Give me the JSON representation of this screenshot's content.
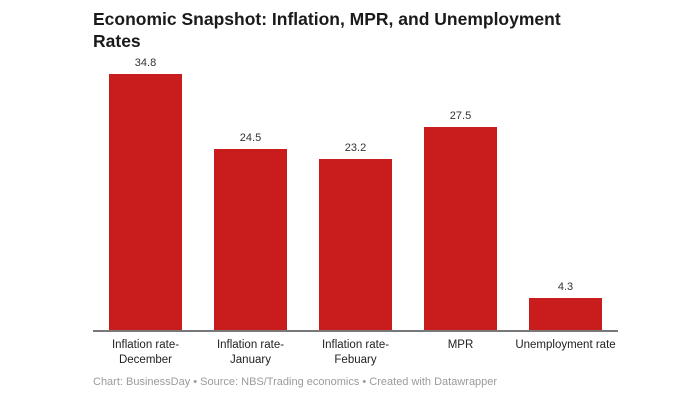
{
  "title": "Economic Snapshot: Inflation, MPR, and Unemployment Rates",
  "footer": {
    "text": "Chart: BusinessDay • Source: NBS/Trading economics • Created with Datawrapper"
  },
  "colors": {
    "bar": "#c91d1d",
    "axis": "#787878",
    "title": "#1a1a1a",
    "value_label": "#333333",
    "category_label": "#222222",
    "footer": "#9b9b9b",
    "background": "#ffffff"
  },
  "chart_data": {
    "type": "bar",
    "title": "Economic Snapshot: Inflation, MPR, and Unemployment Rates",
    "categories": [
      "Inflation rate-December",
      "Inflation rate-January",
      "Inflation rate-Febuary",
      "MPR",
      "Unemployment rate"
    ],
    "values": [
      34.8,
      24.5,
      23.2,
      27.5,
      4.3
    ],
    "value_labels": [
      "34.8",
      "24.5",
      "23.2",
      "27.5",
      "4.3"
    ],
    "xlabel": "",
    "ylabel": "",
    "ylim": [
      0,
      35
    ],
    "grid": false,
    "legend_position": "none",
    "bar_color": "#c91d1d"
  }
}
